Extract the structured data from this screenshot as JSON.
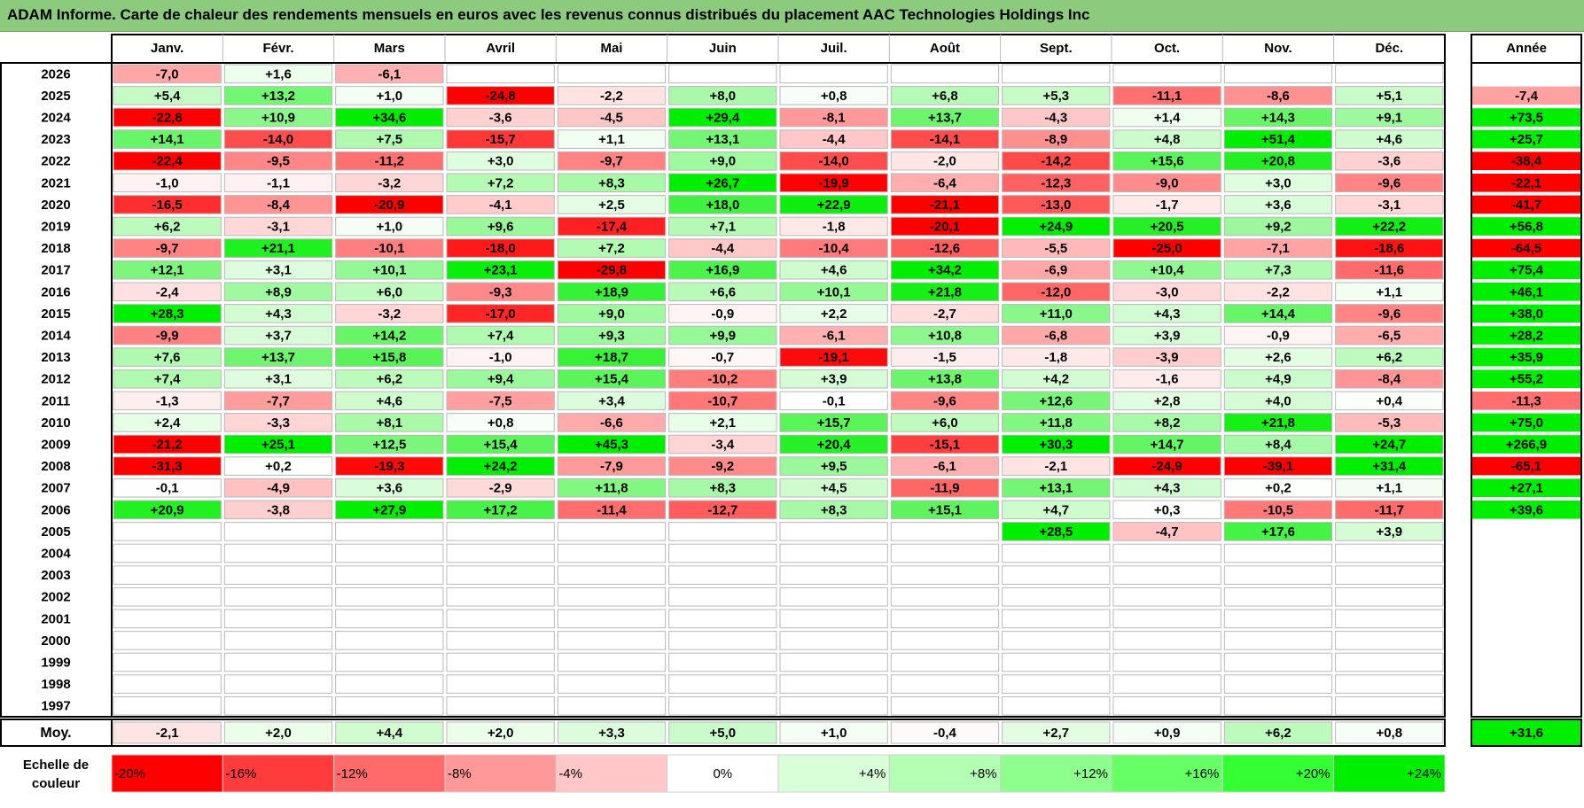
{
  "title": "ADAM Informe. Carte de chaleur des rendements mensuels en euros avec les revenus connus distribués du placement AAC Technologies Holdings Inc",
  "chart_data": {
    "type": "heatmap",
    "title": "ADAM Informe. Carte de chaleur des rendements mensuels en euros avec les revenus connus distribués du placement AAC Technologies Holdings Inc",
    "months": [
      "Janv.",
      "Févr.",
      "Mars",
      "Avril",
      "Mai",
      "Juin",
      "Juil.",
      "Août",
      "Sept.",
      "Oct.",
      "Nov.",
      "Déc."
    ],
    "year_header": "Année",
    "rows": [
      {
        "year": "2026",
        "values": [
          "-7,0",
          "+1,6",
          "-6,1",
          "",
          "",
          "",
          "",
          "",
          "",
          "",
          "",
          ""
        ],
        "annual": ""
      },
      {
        "year": "2025",
        "values": [
          "+5,4",
          "+13,2",
          "+1,0",
          "-24,8",
          "-2,2",
          "+8,0",
          "+0,8",
          "+6,8",
          "+5,3",
          "-11,1",
          "-8,6",
          "+5,1"
        ],
        "annual": "-7,4"
      },
      {
        "year": "2024",
        "values": [
          "-22,8",
          "+10,9",
          "+34,6",
          "-3,6",
          "-4,5",
          "+29,4",
          "-8,1",
          "+13,7",
          "-4,3",
          "+1,4",
          "+14,3",
          "+9,1"
        ],
        "annual": "+73,5"
      },
      {
        "year": "2023",
        "values": [
          "+14,1",
          "-14,0",
          "+7,5",
          "-15,7",
          "+1,1",
          "+13,1",
          "-4,4",
          "-14,1",
          "-8,9",
          "+4,8",
          "+51,4",
          "+4,6"
        ],
        "annual": "+25,7"
      },
      {
        "year": "2022",
        "values": [
          "-22,4",
          "-9,5",
          "-11,2",
          "+3,0",
          "-9,7",
          "+9,0",
          "-14,0",
          "-2,0",
          "-14,2",
          "+15,6",
          "+20,8",
          "-3,6"
        ],
        "annual": "-38,4"
      },
      {
        "year": "2021",
        "values": [
          "-1,0",
          "-1,1",
          "-3,2",
          "+7,2",
          "+8,3",
          "+26,7",
          "-19,9",
          "-6,4",
          "-12,3",
          "-9,0",
          "+3,0",
          "-9,6"
        ],
        "annual": "-22,1"
      },
      {
        "year": "2020",
        "values": [
          "-16,5",
          "-8,4",
          "-20,9",
          "-4,1",
          "+2,5",
          "+18,0",
          "+22,9",
          "-21,1",
          "-13,0",
          "-1,7",
          "+3,6",
          "-3,1"
        ],
        "annual": "-41,7"
      },
      {
        "year": "2019",
        "values": [
          "+6,2",
          "-3,1",
          "+1,0",
          "+9,6",
          "-17,4",
          "+7,1",
          "-1,8",
          "-20,1",
          "+24,9",
          "+20,5",
          "+9,2",
          "+22,2"
        ],
        "annual": "+56,8"
      },
      {
        "year": "2018",
        "values": [
          "-9,7",
          "+21,1",
          "-10,1",
          "-18,0",
          "+7,2",
          "-4,4",
          "-10,4",
          "-12,6",
          "-5,5",
          "-25,0",
          "-7,1",
          "-18,6"
        ],
        "annual": "-64,5"
      },
      {
        "year": "2017",
        "values": [
          "+12,1",
          "+3,1",
          "+10,1",
          "+23,1",
          "-29,8",
          "+16,9",
          "+4,6",
          "+34,2",
          "-6,9",
          "+10,4",
          "+7,3",
          "-11,6"
        ],
        "annual": "+75,4"
      },
      {
        "year": "2016",
        "values": [
          "-2,4",
          "+8,9",
          "+6,0",
          "-9,3",
          "+18,9",
          "+6,6",
          "+10,1",
          "+21,8",
          "-12,0",
          "-3,0",
          "-2,2",
          "+1,1"
        ],
        "annual": "+46,1"
      },
      {
        "year": "2015",
        "values": [
          "+28,3",
          "+4,3",
          "-3,2",
          "-17,0",
          "+9,0",
          "-0,9",
          "+2,2",
          "-2,7",
          "+11,0",
          "+4,3",
          "+14,4",
          "-9,6"
        ],
        "annual": "+38,0"
      },
      {
        "year": "2014",
        "values": [
          "-9,9",
          "+3,7",
          "+14,2",
          "+7,4",
          "+9,3",
          "+9,9",
          "-6,1",
          "+10,8",
          "-6,8",
          "+3,9",
          "-0,9",
          "-6,5"
        ],
        "annual": "+28,2"
      },
      {
        "year": "2013",
        "values": [
          "+7,6",
          "+13,7",
          "+15,8",
          "-1,0",
          "+18,7",
          "-0,7",
          "-19,1",
          "-1,5",
          "-1,8",
          "-3,9",
          "+2,6",
          "+6,2"
        ],
        "annual": "+35,9"
      },
      {
        "year": "2012",
        "values": [
          "+7,4",
          "+3,1",
          "+6,2",
          "+9,4",
          "+15,4",
          "-10,2",
          "+3,9",
          "+13,8",
          "+4,2",
          "-1,6",
          "+4,9",
          "-8,4"
        ],
        "annual": "+55,2"
      },
      {
        "year": "2011",
        "values": [
          "-1,3",
          "-7,7",
          "+4,6",
          "-7,5",
          "+3,4",
          "-10,7",
          "-0,1",
          "-9,6",
          "+12,6",
          "+2,8",
          "+4,0",
          "+0,4"
        ],
        "annual": "-11,3"
      },
      {
        "year": "2010",
        "values": [
          "+2,4",
          "-3,3",
          "+8,1",
          "+0,8",
          "-6,6",
          "+2,1",
          "+15,7",
          "+6,0",
          "+11,8",
          "+8,2",
          "+21,8",
          "-5,3"
        ],
        "annual": "+75,0"
      },
      {
        "year": "2009",
        "values": [
          "-21,2",
          "+25,1",
          "+12,5",
          "+15,4",
          "+45,3",
          "-3,4",
          "+20,4",
          "-15,1",
          "+30,3",
          "+14,7",
          "+8,4",
          "+24,7"
        ],
        "annual": "+266,9"
      },
      {
        "year": "2008",
        "values": [
          "-31,3",
          "+0,2",
          "-19,3",
          "+24,2",
          "-7,9",
          "-9,2",
          "+9,5",
          "-6,1",
          "-2,1",
          "-24,9",
          "-39,1",
          "+31,4"
        ],
        "annual": "-65,1"
      },
      {
        "year": "2007",
        "values": [
          "-0,1",
          "-4,9",
          "+3,6",
          "-2,9",
          "+11,8",
          "+8,3",
          "+4,5",
          "-11,9",
          "+13,1",
          "+4,3",
          "+0,2",
          "+1,1"
        ],
        "annual": "+27,1"
      },
      {
        "year": "2006",
        "values": [
          "+20,9",
          "-3,8",
          "+27,9",
          "+17,2",
          "-11,4",
          "-12,7",
          "+8,3",
          "+15,1",
          "+4,7",
          "+0,3",
          "-10,5",
          "-11,7"
        ],
        "annual": "+39,6"
      },
      {
        "year": "2005",
        "values": [
          "",
          "",
          "",
          "",
          "",
          "",
          "",
          "",
          "+28,5",
          "-4,7",
          "+17,6",
          "+3,9"
        ],
        "annual": ""
      },
      {
        "year": "2004",
        "values": [
          "",
          "",
          "",
          "",
          "",
          "",
          "",
          "",
          "",
          "",
          "",
          ""
        ],
        "annual": ""
      },
      {
        "year": "2003",
        "values": [
          "",
          "",
          "",
          "",
          "",
          "",
          "",
          "",
          "",
          "",
          "",
          ""
        ],
        "annual": ""
      },
      {
        "year": "2002",
        "values": [
          "",
          "",
          "",
          "",
          "",
          "",
          "",
          "",
          "",
          "",
          "",
          ""
        ],
        "annual": ""
      },
      {
        "year": "2001",
        "values": [
          "",
          "",
          "",
          "",
          "",
          "",
          "",
          "",
          "",
          "",
          "",
          ""
        ],
        "annual": ""
      },
      {
        "year": "2000",
        "values": [
          "",
          "",
          "",
          "",
          "",
          "",
          "",
          "",
          "",
          "",
          "",
          ""
        ],
        "annual": ""
      },
      {
        "year": "1999",
        "values": [
          "",
          "",
          "",
          "",
          "",
          "",
          "",
          "",
          "",
          "",
          "",
          ""
        ],
        "annual": ""
      },
      {
        "year": "1998",
        "values": [
          "",
          "",
          "",
          "",
          "",
          "",
          "",
          "",
          "",
          "",
          "",
          ""
        ],
        "annual": ""
      },
      {
        "year": "1997",
        "values": [
          "",
          "",
          "",
          "",
          "",
          "",
          "",
          "",
          "",
          "",
          "",
          ""
        ],
        "annual": ""
      }
    ],
    "average": {
      "label": "Moy.",
      "values": [
        "-2,1",
        "+2,0",
        "+4,4",
        "+2,0",
        "+3,3",
        "+5,0",
        "+1,0",
        "-0,4",
        "+2,7",
        "+0,9",
        "+6,2",
        "+0,8"
      ],
      "annual": "+31,6"
    },
    "scale": {
      "label_line1": "Echelle de",
      "label_line2": "couleur",
      "steps": [
        "-20%",
        "-16%",
        "-12%",
        "-8%",
        "-4%",
        "0%",
        "+4%",
        "+8%",
        "+12%",
        "+16%",
        "+20%",
        "+24%"
      ],
      "step_colors": [
        "#ff0000",
        "#ff3b3b",
        "#ff6b6b",
        "#ff9999",
        "#ffc7c7",
        "#ffffff",
        "#d9ffd9",
        "#b3ffb3",
        "#8cff8c",
        "#66ff66",
        "#33ff33",
        "#00ee00"
      ]
    },
    "colors": {
      "title_bar": "#8ccb7d",
      "grid": "#b8b8b8",
      "border": "#000000"
    }
  }
}
